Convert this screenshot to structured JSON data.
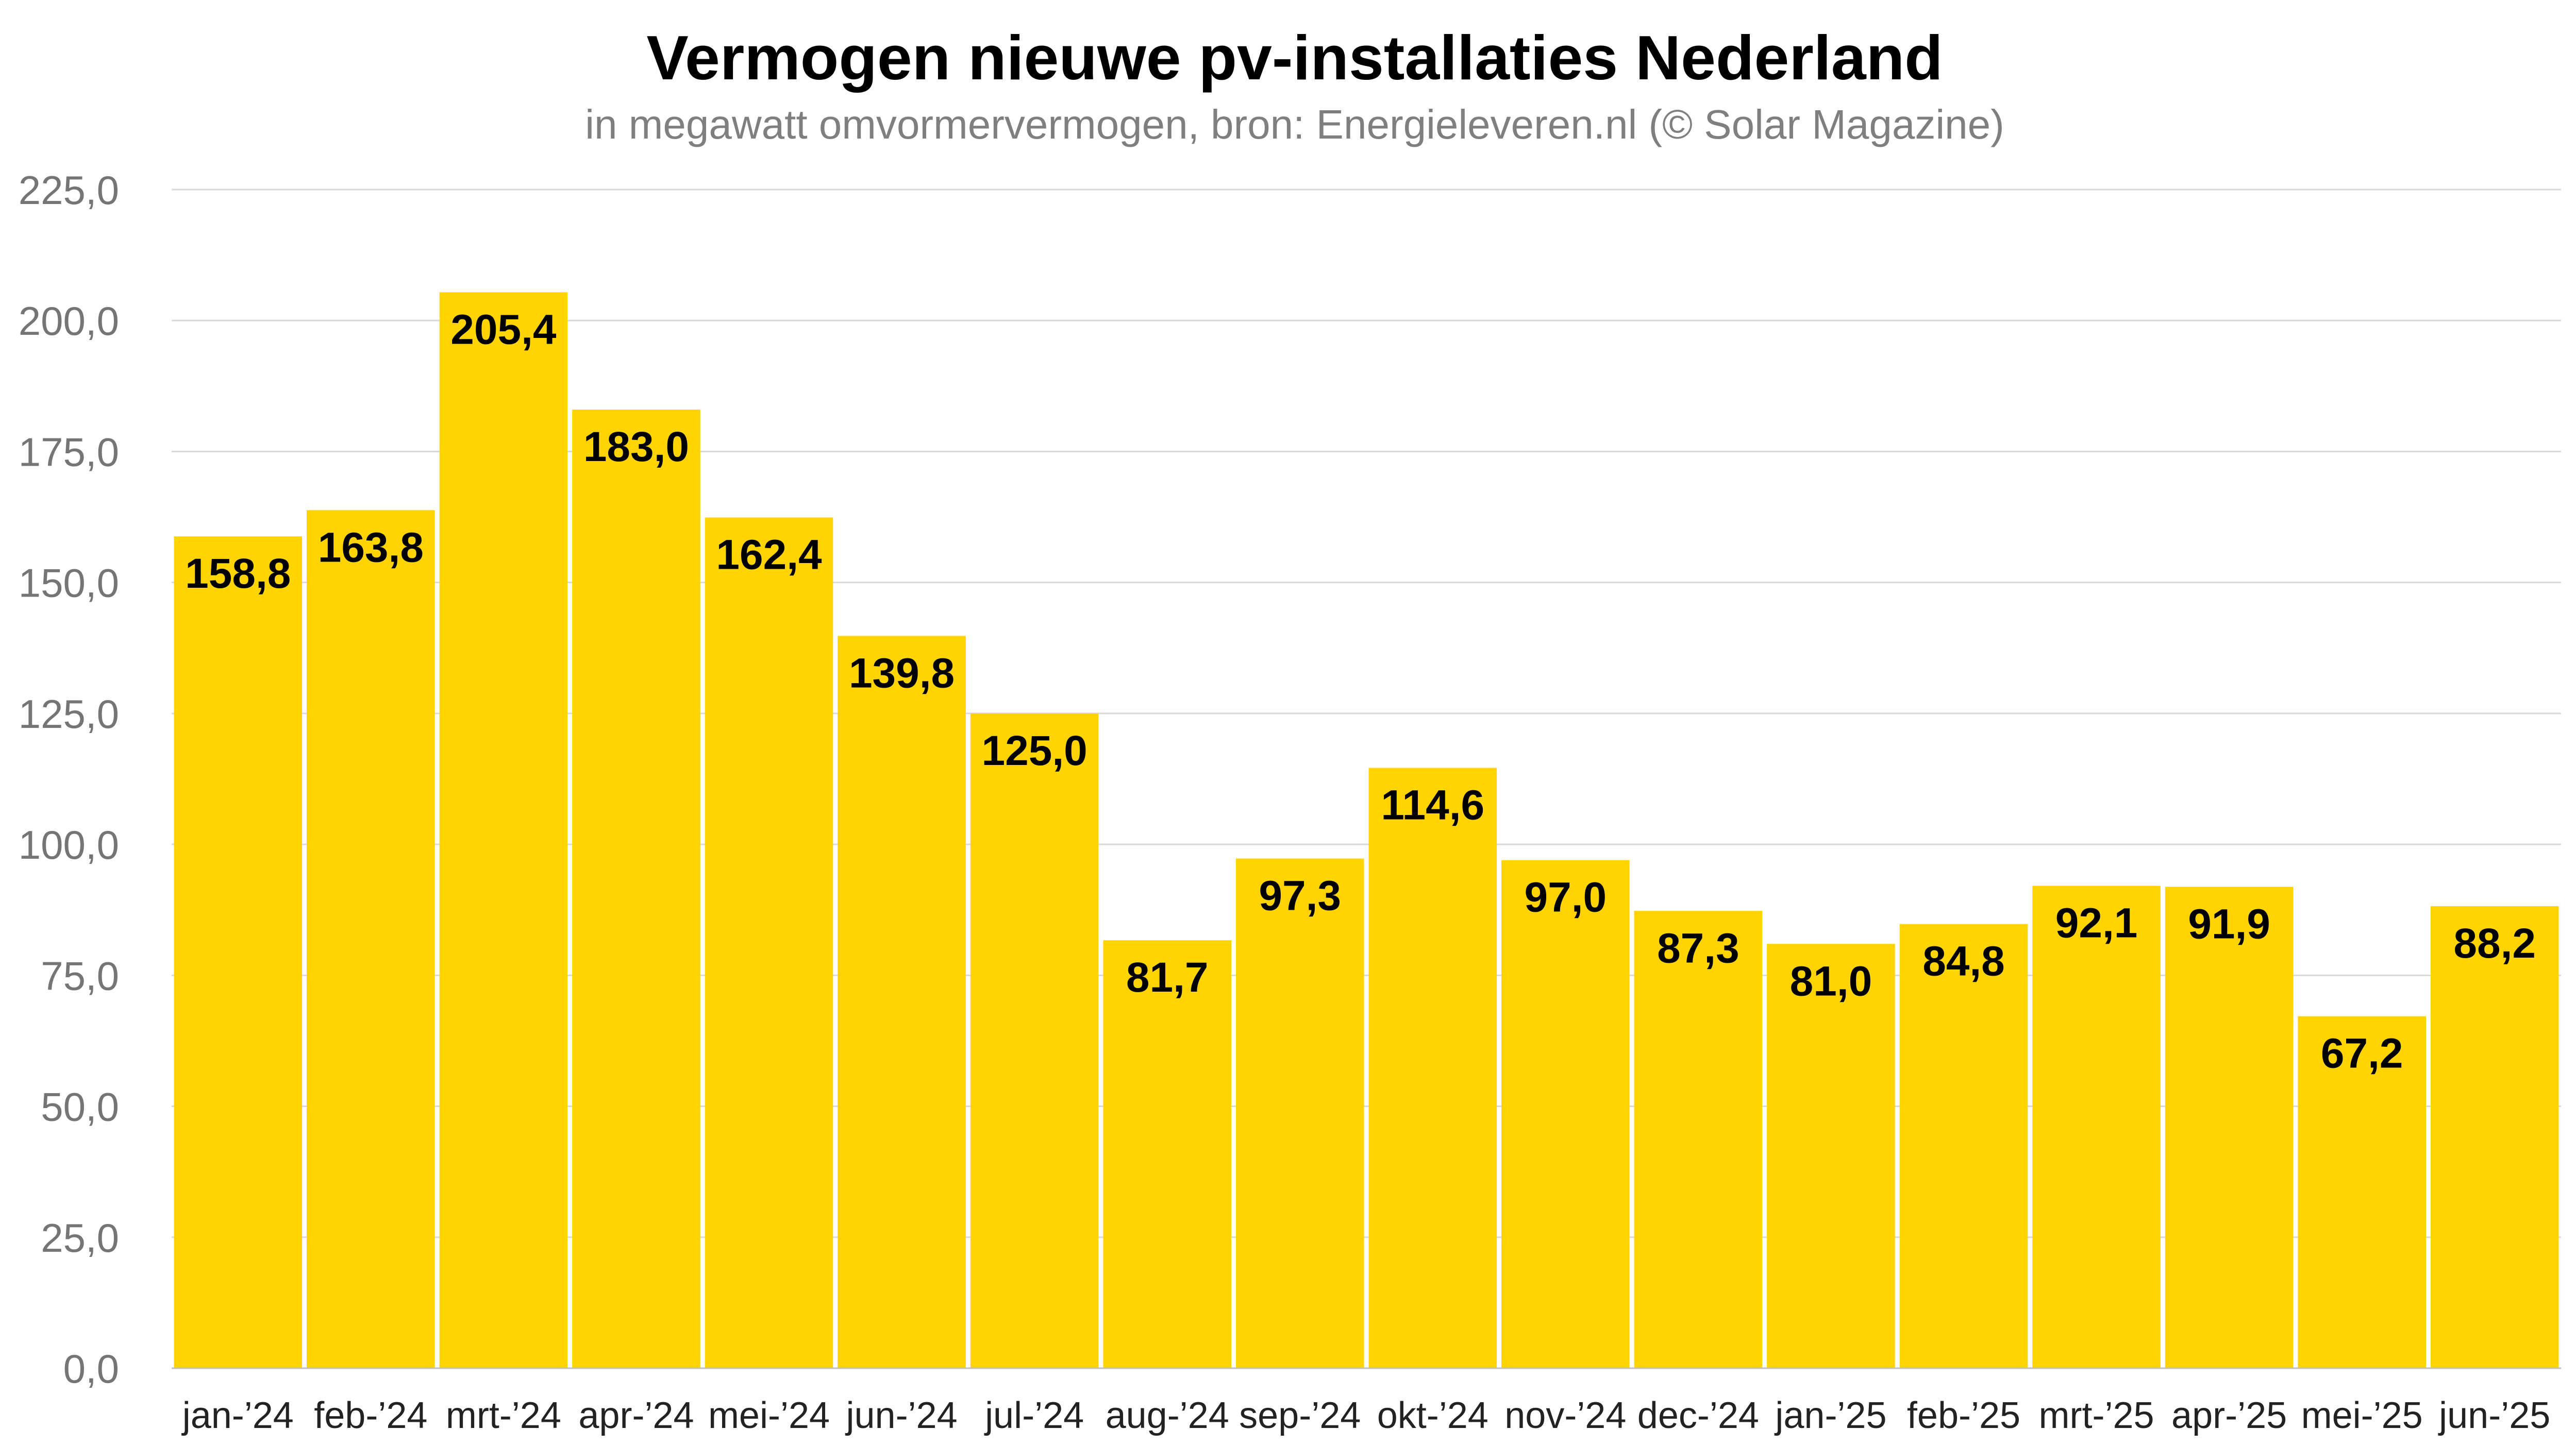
{
  "chart_data": {
    "type": "bar",
    "title": "Vermogen nieuwe pv-installaties Nederland",
    "subtitle": "in megawatt omvormervermogen, bron: Energieleveren.nl (© Solar Magazine)",
    "xlabel": "",
    "ylabel": "",
    "categories": [
      "jan-’24",
      "feb-’24",
      "mrt-’24",
      "apr-’24",
      "mei-’24",
      "jun-’24",
      "jul-’24",
      "aug-’24",
      "sep-’24",
      "okt-’24",
      "nov-’24",
      "dec-’24",
      "jan-’25",
      "feb-’25",
      "mrt-’25",
      "apr-’25",
      "mei-’25",
      "jun-’25"
    ],
    "values": [
      158.8,
      163.8,
      205.4,
      183.0,
      162.4,
      139.8,
      125.0,
      81.7,
      97.3,
      114.6,
      97.0,
      87.3,
      81.0,
      84.8,
      92.1,
      91.9,
      67.2,
      88.2
    ],
    "data_labels": [
      "158,8",
      "163,8",
      "205,4",
      "183,0",
      "162,4",
      "139,8",
      "125,0",
      "81,7",
      "97,3",
      "114,6",
      "97,0",
      "87,3",
      "81,0",
      "84,8",
      "92,1",
      "91,9",
      "67,2",
      "88,2"
    ],
    "ylim": [
      0,
      225
    ],
    "yticks": [
      0,
      25,
      50,
      75,
      100,
      125,
      150,
      175,
      200,
      225
    ],
    "ytick_labels": [
      "0,0",
      "25,0",
      "50,0",
      "75,0",
      "100,0",
      "125,0",
      "150,0",
      "175,0",
      "200,0",
      "225,0"
    ],
    "grid": true
  },
  "colors": {
    "bar": "#FFD400",
    "title": "#000000",
    "subtitle": "#7F7F7F",
    "tick_label": "#757575",
    "x_tick_label": "#222222",
    "data_label": "#000000",
    "grid": "#D9D9D9",
    "axis": "#BFBFBF"
  }
}
